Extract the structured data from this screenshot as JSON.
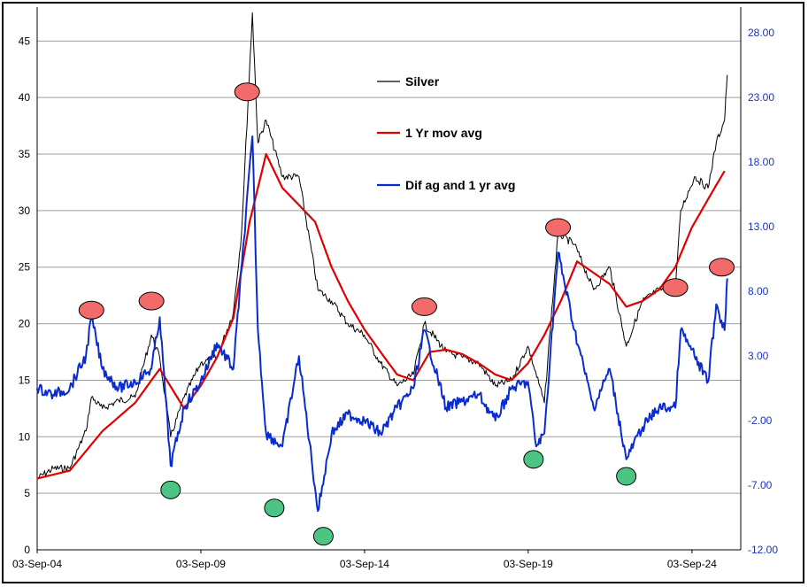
{
  "colors": {
    "silver": "#000000",
    "moving_avg": "#e00000",
    "difference": "#0a2ccf",
    "peak_marker": "#f26a6a",
    "trough_marker": "#4cc484",
    "grid": "#a0a0a0",
    "right_axis_text": "#1a34c0"
  },
  "chart_data": {
    "type": "line",
    "title": "",
    "x_tick_labels": [
      "03-Sep-04",
      "03-Sep-09",
      "03-Sep-14",
      "03-Sep-19",
      "03-Sep-24"
    ],
    "x_range": [
      "2004-09-03",
      "2026-03-01"
    ],
    "y_left": {
      "ylim": [
        0,
        48
      ],
      "ticks": [
        0,
        5,
        10,
        15,
        20,
        25,
        30,
        35,
        40,
        45
      ]
    },
    "y_right": {
      "ylim": [
        -12,
        30
      ],
      "ticks": [
        "-12.00",
        "-7.00",
        "-2.00",
        "3.00",
        "8.00",
        "13.00",
        "18.00",
        "23.00",
        "28.00"
      ]
    },
    "grid": true,
    "legend_position": "upper-center",
    "series": [
      {
        "name": "Silver",
        "axis": "left",
        "x": [
          "2004-09",
          "2005-03",
          "2005-09",
          "2006-03",
          "2006-05",
          "2006-09",
          "2007-03",
          "2007-09",
          "2008-03",
          "2008-06",
          "2008-10",
          "2009-03",
          "2009-09",
          "2010-03",
          "2010-09",
          "2010-12",
          "2011-04",
          "2011-06",
          "2011-09",
          "2012-03",
          "2012-09",
          "2013-04",
          "2013-09",
          "2014-03",
          "2014-09",
          "2015-03",
          "2015-09",
          "2016-03",
          "2016-07",
          "2017-03",
          "2017-09",
          "2018-03",
          "2018-09",
          "2019-03",
          "2019-09",
          "2020-03",
          "2020-08",
          "2021-02",
          "2021-09",
          "2022-03",
          "2022-09",
          "2023-03",
          "2023-09",
          "2024-03",
          "2024-05",
          "2024-10",
          "2025-03",
          "2025-06",
          "2025-09",
          "2025-10"
        ],
        "values": [
          6.3,
          7.2,
          7.2,
          10.5,
          13.5,
          12.5,
          13.2,
          13.5,
          19.0,
          17.0,
          10.0,
          13.5,
          16.5,
          17.0,
          21.0,
          28.0,
          47.5,
          36.0,
          38.0,
          33.0,
          33.0,
          23.0,
          22.0,
          20.0,
          19.0,
          16.5,
          14.5,
          15.5,
          20.0,
          17.5,
          17.0,
          16.5,
          14.5,
          15.0,
          18.0,
          13.0,
          28.0,
          27.0,
          23.0,
          25.0,
          18.0,
          22.0,
          23.0,
          23.0,
          30.0,
          33.0,
          32.0,
          36.0,
          38.0,
          42.0
        ]
      },
      {
        "name": "1 Yr mov avg",
        "axis": "left",
        "x": [
          "2004-09",
          "2005-09",
          "2006-09",
          "2007-09",
          "2008-06",
          "2009-03",
          "2009-09",
          "2010-03",
          "2010-09",
          "2011-03",
          "2011-09",
          "2012-03",
          "2012-09",
          "2013-03",
          "2013-09",
          "2014-03",
          "2014-09",
          "2015-03",
          "2015-09",
          "2016-03",
          "2016-09",
          "2017-03",
          "2017-09",
          "2018-03",
          "2018-09",
          "2019-03",
          "2019-09",
          "2020-03",
          "2020-09",
          "2021-03",
          "2021-09",
          "2022-03",
          "2022-09",
          "2023-03",
          "2023-09",
          "2024-03",
          "2024-09",
          "2025-03",
          "2025-09"
        ],
        "values": [
          6.3,
          7.0,
          10.5,
          13.0,
          16.0,
          12.5,
          14.5,
          17.0,
          20.5,
          29.0,
          35.0,
          32.0,
          30.5,
          29.0,
          25.0,
          22.0,
          19.5,
          17.5,
          15.5,
          15.0,
          17.5,
          17.7,
          17.3,
          16.5,
          15.5,
          15.0,
          16.5,
          19.0,
          22.0,
          25.5,
          24.5,
          23.5,
          21.5,
          22.0,
          23.0,
          25.0,
          28.5,
          31.0,
          33.5
        ]
      },
      {
        "name": "Dif ag and 1 yr avg",
        "axis": "right",
        "x": [
          "2004-09",
          "2005-03",
          "2005-09",
          "2006-03",
          "2006-05",
          "2006-09",
          "2007-03",
          "2007-09",
          "2008-03",
          "2008-06",
          "2008-10",
          "2009-03",
          "2009-09",
          "2010-03",
          "2010-09",
          "2011-04",
          "2011-06",
          "2011-09",
          "2012-03",
          "2012-09",
          "2013-04",
          "2013-09",
          "2014-03",
          "2014-09",
          "2015-03",
          "2015-09",
          "2016-03",
          "2016-07",
          "2017-03",
          "2017-09",
          "2018-03",
          "2018-09",
          "2019-03",
          "2019-09",
          "2019-12",
          "2020-03",
          "2020-08",
          "2021-02",
          "2021-09",
          "2022-03",
          "2022-09",
          "2023-03",
          "2023-09",
          "2024-03",
          "2024-05",
          "2024-10",
          "2025-03",
          "2025-06",
          "2025-09",
          "2025-10"
        ],
        "values": [
          0.5,
          0.0,
          0.5,
          3.0,
          6.0,
          2.0,
          0.5,
          1.0,
          2.0,
          6.0,
          -5.5,
          -1.0,
          1.0,
          4.0,
          2.0,
          20.0,
          5.0,
          -3.0,
          -4.0,
          3.0,
          -9.0,
          -3.0,
          -1.5,
          -2.0,
          -3.0,
          -1.0,
          0.5,
          5.0,
          -1.0,
          -0.5,
          0.0,
          -2.0,
          0.5,
          1.0,
          -4.0,
          -3.0,
          11.0,
          5.0,
          -1.0,
          2.0,
          -5.0,
          -2.5,
          -1.0,
          -1.0,
          5.0,
          3.0,
          1.0,
          7.0,
          5.0,
          9.0
        ]
      }
    ],
    "annotations": {
      "peaks": [
        {
          "x": "2006-05",
          "y_left": 21.2
        },
        {
          "x": "2008-03",
          "y_left": 22.0
        },
        {
          "x": "2011-02",
          "y_left": 40.5
        },
        {
          "x": "2016-07",
          "y_left": 21.5
        },
        {
          "x": "2020-08",
          "y_left": 28.5
        },
        {
          "x": "2024-03",
          "y_left": 23.2
        },
        {
          "x": "2025-08",
          "y_left": 25.0
        }
      ],
      "troughs": [
        {
          "x": "2008-10",
          "y_left": 5.3
        },
        {
          "x": "2011-12",
          "y_left": 3.7
        },
        {
          "x": "2013-06",
          "y_left": 1.2
        },
        {
          "x": "2019-11",
          "y_left": 8.0
        },
        {
          "x": "2022-09",
          "y_left": 6.5
        }
      ]
    }
  }
}
